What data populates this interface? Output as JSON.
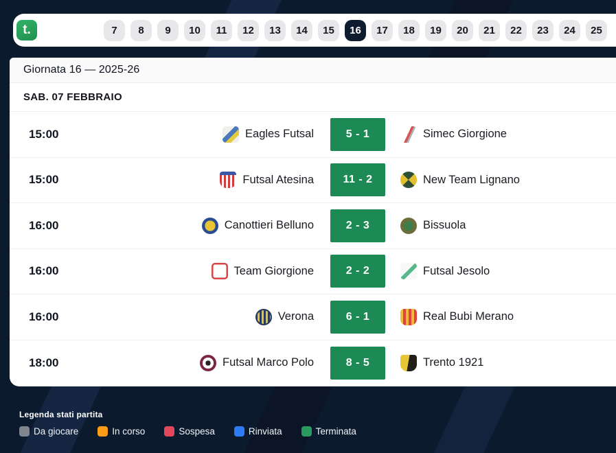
{
  "topbar": {
    "logo_text": "t.",
    "rounds": [
      "7",
      "8",
      "9",
      "10",
      "11",
      "12",
      "13",
      "14",
      "15",
      "16",
      "17",
      "18",
      "19",
      "20",
      "21",
      "22",
      "23",
      "24",
      "25"
    ],
    "selected_round": "16"
  },
  "header": {
    "title": "Giornata 16 — 2025-26"
  },
  "date_header": "SAB. 07 FEBBRAIO",
  "colors": {
    "page_background": "#0c1a2e",
    "selected_tab": "#0f1b2e",
    "tab_background": "#e8e8ea",
    "score_badge_green": "#1d8a55",
    "card_background": "#ffffff"
  },
  "matches": [
    {
      "time": "15:00",
      "home": "Eagles Futsal",
      "score": "5 - 1",
      "away": "Simec Giorgione",
      "home_logo_css": "border-radius:5px;background:linear-gradient(135deg,#eef0e9 0 38%,#4a78b8 38% 58%,#e5c93e 58% 76%,#eef0e9 76%)",
      "away_logo_css": "border-radius:5px;background:linear-gradient(115deg,#ffffff 0 46%,#d85455 46% 57%,#a9b0b5 57% 65%,#ffffff 65%)"
    },
    {
      "time": "15:00",
      "home": "Futsal Atesina",
      "score": "11 - 2",
      "away": "New Team Lignano",
      "home_logo_css": "border-radius:4px 4px 10px 10px;background:linear-gradient(#3a57a8 0 20%,rgba(0,0,0,0) 20%),repeating-linear-gradient(90deg,#d23b3b 0 3px,#ffffff 3px 6px)",
      "away_logo_css": "border-radius:50%;background:conic-gradient(from 45deg,#e2bf2e 0 25%,#2c4f36 25% 50%,#e2bf2e 50% 75%,#2c4f36 75%)"
    },
    {
      "time": "16:00",
      "home": "Canottieri Belluno",
      "score": "2 - 3",
      "away": "Bissuola",
      "home_logo_css": "border-radius:50%;background:radial-gradient(circle,#e9c436 0 45%,#2a4d92 45% 85%,#1c3668 85%)",
      "away_logo_css": "border-radius:50%;background:radial-gradient(circle,#3f7d4a 0 42%,#6d6c3c 42% 80%,#4a4a28 80%)"
    },
    {
      "time": "16:00",
      "home": "Team Giorgione",
      "score": "2 - 2",
      "away": "Futsal Jesolo",
      "home_logo_css": "border-radius:5px;background:#ffffff;box-shadow:inset 0 0 0 2.5px #d94545",
      "away_logo_css": "border-radius:5px;background:linear-gradient(135deg,#f6f9f7 0 45%,#58b88a 45% 62%,#f6f9f7 62%)"
    },
    {
      "time": "16:00",
      "home": "Verona",
      "score": "6 - 1",
      "away": "Real Bubi Merano",
      "home_logo_css": "border-radius:50%;background:radial-gradient(circle,rgba(0,0,0,0) 0 58%,#2a3a5c 58%),repeating-linear-gradient(90deg,#2a3a5c 0 3px,#dfc23e 3px 6px)",
      "away_logo_css": "border-radius:5px 5px 9px 9px;background:repeating-linear-gradient(90deg,#f0b93c 0 4px,#e2423c 4px 8px)"
    },
    {
      "time": "18:00",
      "home": "Futsal Marco Polo",
      "score": "8 - 5",
      "away": "Trento 1921",
      "home_logo_css": "border-radius:50%;background:radial-gradient(circle,#26202a 0 22%,#ffffff 22% 48%,#7c2742 48% 78%,#ffffff 78%)",
      "away_logo_css": "border-radius:4px 4px 10px 10px;background:linear-gradient(100deg,#e9c636 0 48%,#221f1b 48%)"
    }
  ],
  "legend": {
    "title": "Legenda stati partita",
    "items": [
      {
        "label": "Da giocare",
        "color": "#7f868d",
        "chip_css": "background:#7f868d"
      },
      {
        "label": "In corso",
        "color": "#ff9d18",
        "chip_css": "background:#ff9d18"
      },
      {
        "label": "Sospesa",
        "color": "#e2475b",
        "chip_css": "background:#e2475b"
      },
      {
        "label": "Rinviata",
        "color": "#2e7bf6",
        "chip_css": "background:#2e7bf6"
      },
      {
        "label": "Terminata",
        "color": "#2a9b5e",
        "chip_css": "background:#2a9b5e"
      }
    ]
  }
}
